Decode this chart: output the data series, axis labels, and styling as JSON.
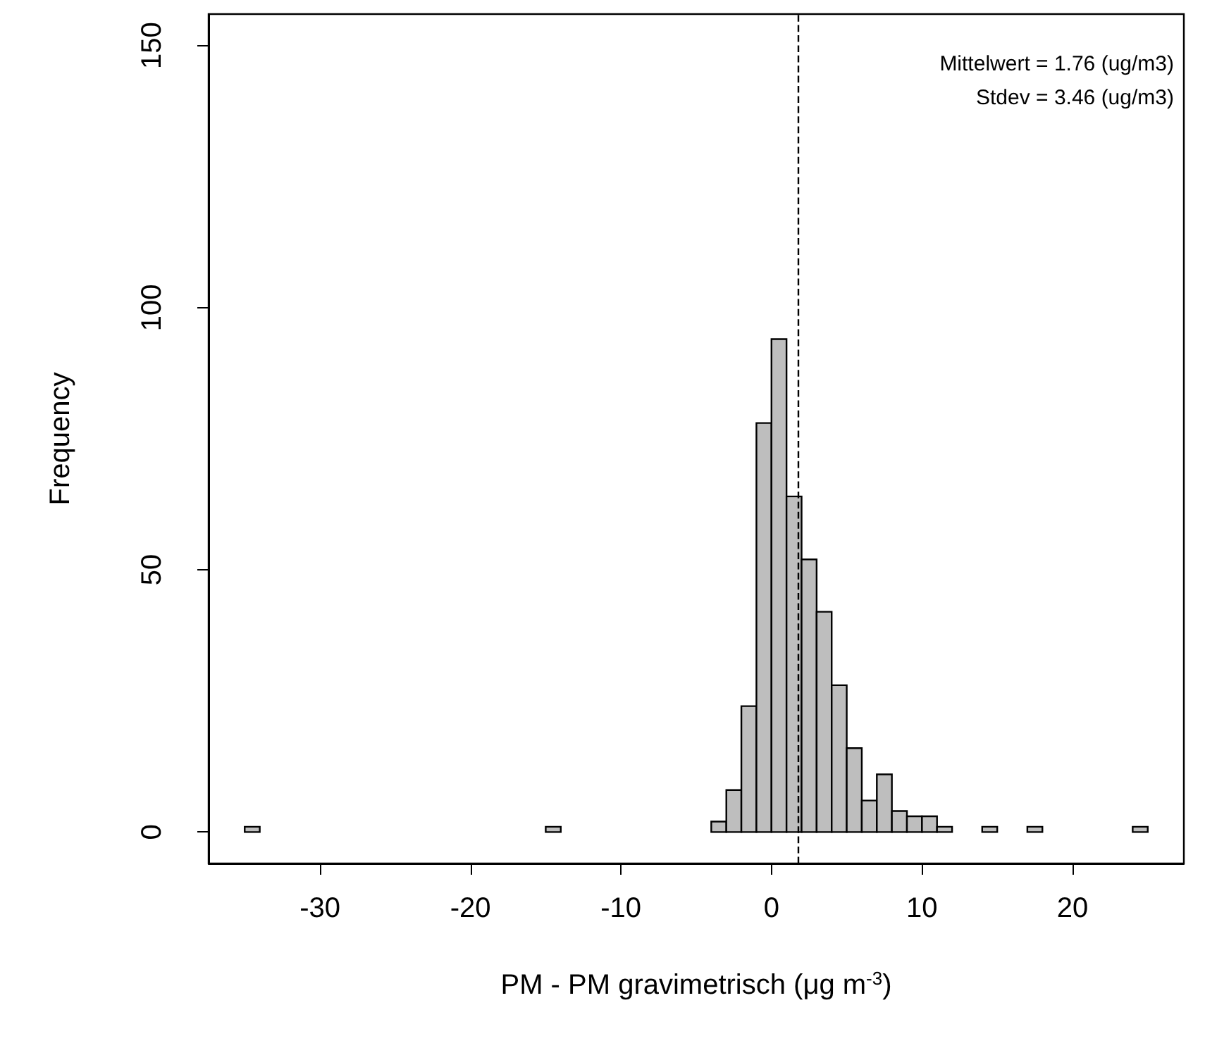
{
  "chart_data": {
    "type": "histogram",
    "xlabel": "PM - PM gravimetrisch (μg m$^{-3}$)",
    "ylabel": "Frequency",
    "bins": [
      -35,
      -34,
      -33,
      -32,
      -31,
      -30,
      -29,
      -28,
      -27,
      -26,
      -25,
      -24,
      -23,
      -22,
      -21,
      -20,
      -19,
      -18,
      -17,
      -16,
      -15,
      -14,
      -13,
      -12,
      -11,
      -10,
      -9,
      -8,
      -7,
      -6,
      -5,
      -4,
      -3,
      -2,
      -1,
      0,
      1,
      2,
      3,
      4,
      5,
      6,
      7,
      8,
      9,
      10,
      11,
      12,
      13,
      14,
      15,
      16,
      17,
      18,
      19,
      20,
      21,
      22,
      23,
      24,
      25
    ],
    "values": [
      1,
      0,
      0,
      0,
      0,
      0,
      0,
      0,
      0,
      0,
      0,
      0,
      0,
      0,
      0,
      0,
      0,
      0,
      0,
      0,
      1,
      0,
      0,
      0,
      0,
      0,
      0,
      0,
      0,
      0,
      0,
      2,
      8,
      24,
      78,
      94,
      64,
      52,
      42,
      28,
      16,
      6,
      11,
      4,
      3,
      3,
      1,
      0,
      0,
      1,
      0,
      0,
      1,
      0,
      0,
      0,
      0,
      0,
      0,
      1
    ],
    "color": "#bebebe",
    "xlim": [
      -37.4,
      27.4
    ],
    "ylim": [
      -6,
      156
    ],
    "xticks": [
      -30,
      -20,
      -10,
      0,
      10,
      20
    ],
    "yticks": [
      0,
      50,
      100,
      150
    ],
    "ref_lines": [
      {
        "axis": "x",
        "value": 1.76,
        "label": null,
        "color": "#000000",
        "line_style": "dashed"
      }
    ],
    "annotations": [
      "Mittelwert = 1.76 (ug/m3)",
      "Stdev = 3.46 (ug/m3)"
    ]
  }
}
